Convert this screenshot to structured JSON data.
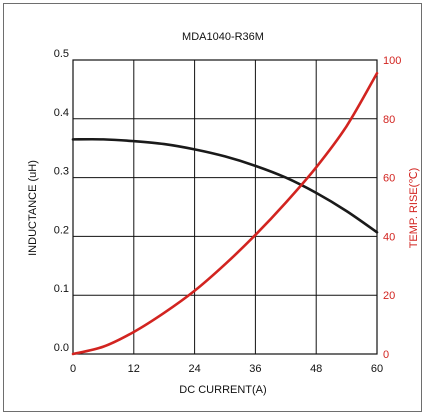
{
  "chart_data": {
    "type": "line",
    "title": "MDA1040-R36M",
    "xlabel": "DC CURRENT(A)",
    "ylabel_left": "INDUCTANCE (uH)",
    "ylabel_right": "TEMP. RISE(℃)",
    "xlim": [
      0,
      60
    ],
    "ylim_left": [
      0.0,
      0.5
    ],
    "ylim_right": [
      0,
      100
    ],
    "x_ticks": [
      "0",
      "12",
      "24",
      "36",
      "48",
      "60"
    ],
    "y_ticks_left": [
      "0.0",
      "0.1",
      "0.2",
      "0.3",
      "0.4",
      "0.5"
    ],
    "y_ticks_right": [
      "0",
      "20",
      "40",
      "60",
      "80",
      "100"
    ],
    "grid": true,
    "colors": {
      "inductance": "#1a1a1a",
      "temp_rise": "#d22420"
    },
    "series": [
      {
        "axis": "left",
        "x": [
          0,
          6,
          12,
          18,
          24,
          30,
          36,
          42,
          48,
          54,
          60
        ],
        "y": [
          0.365,
          0.365,
          0.362,
          0.357,
          0.348,
          0.336,
          0.32,
          0.3,
          0.274,
          0.243,
          0.207
        ]
      },
      {
        "axis": "right",
        "x": [
          0,
          6,
          12,
          18,
          24,
          30,
          36,
          42,
          48,
          54,
          60
        ],
        "y": [
          0,
          2.5,
          7.5,
          14,
          21.5,
          30.5,
          40.5,
          51.5,
          63.5,
          77.5,
          95.5
        ]
      }
    ]
  }
}
